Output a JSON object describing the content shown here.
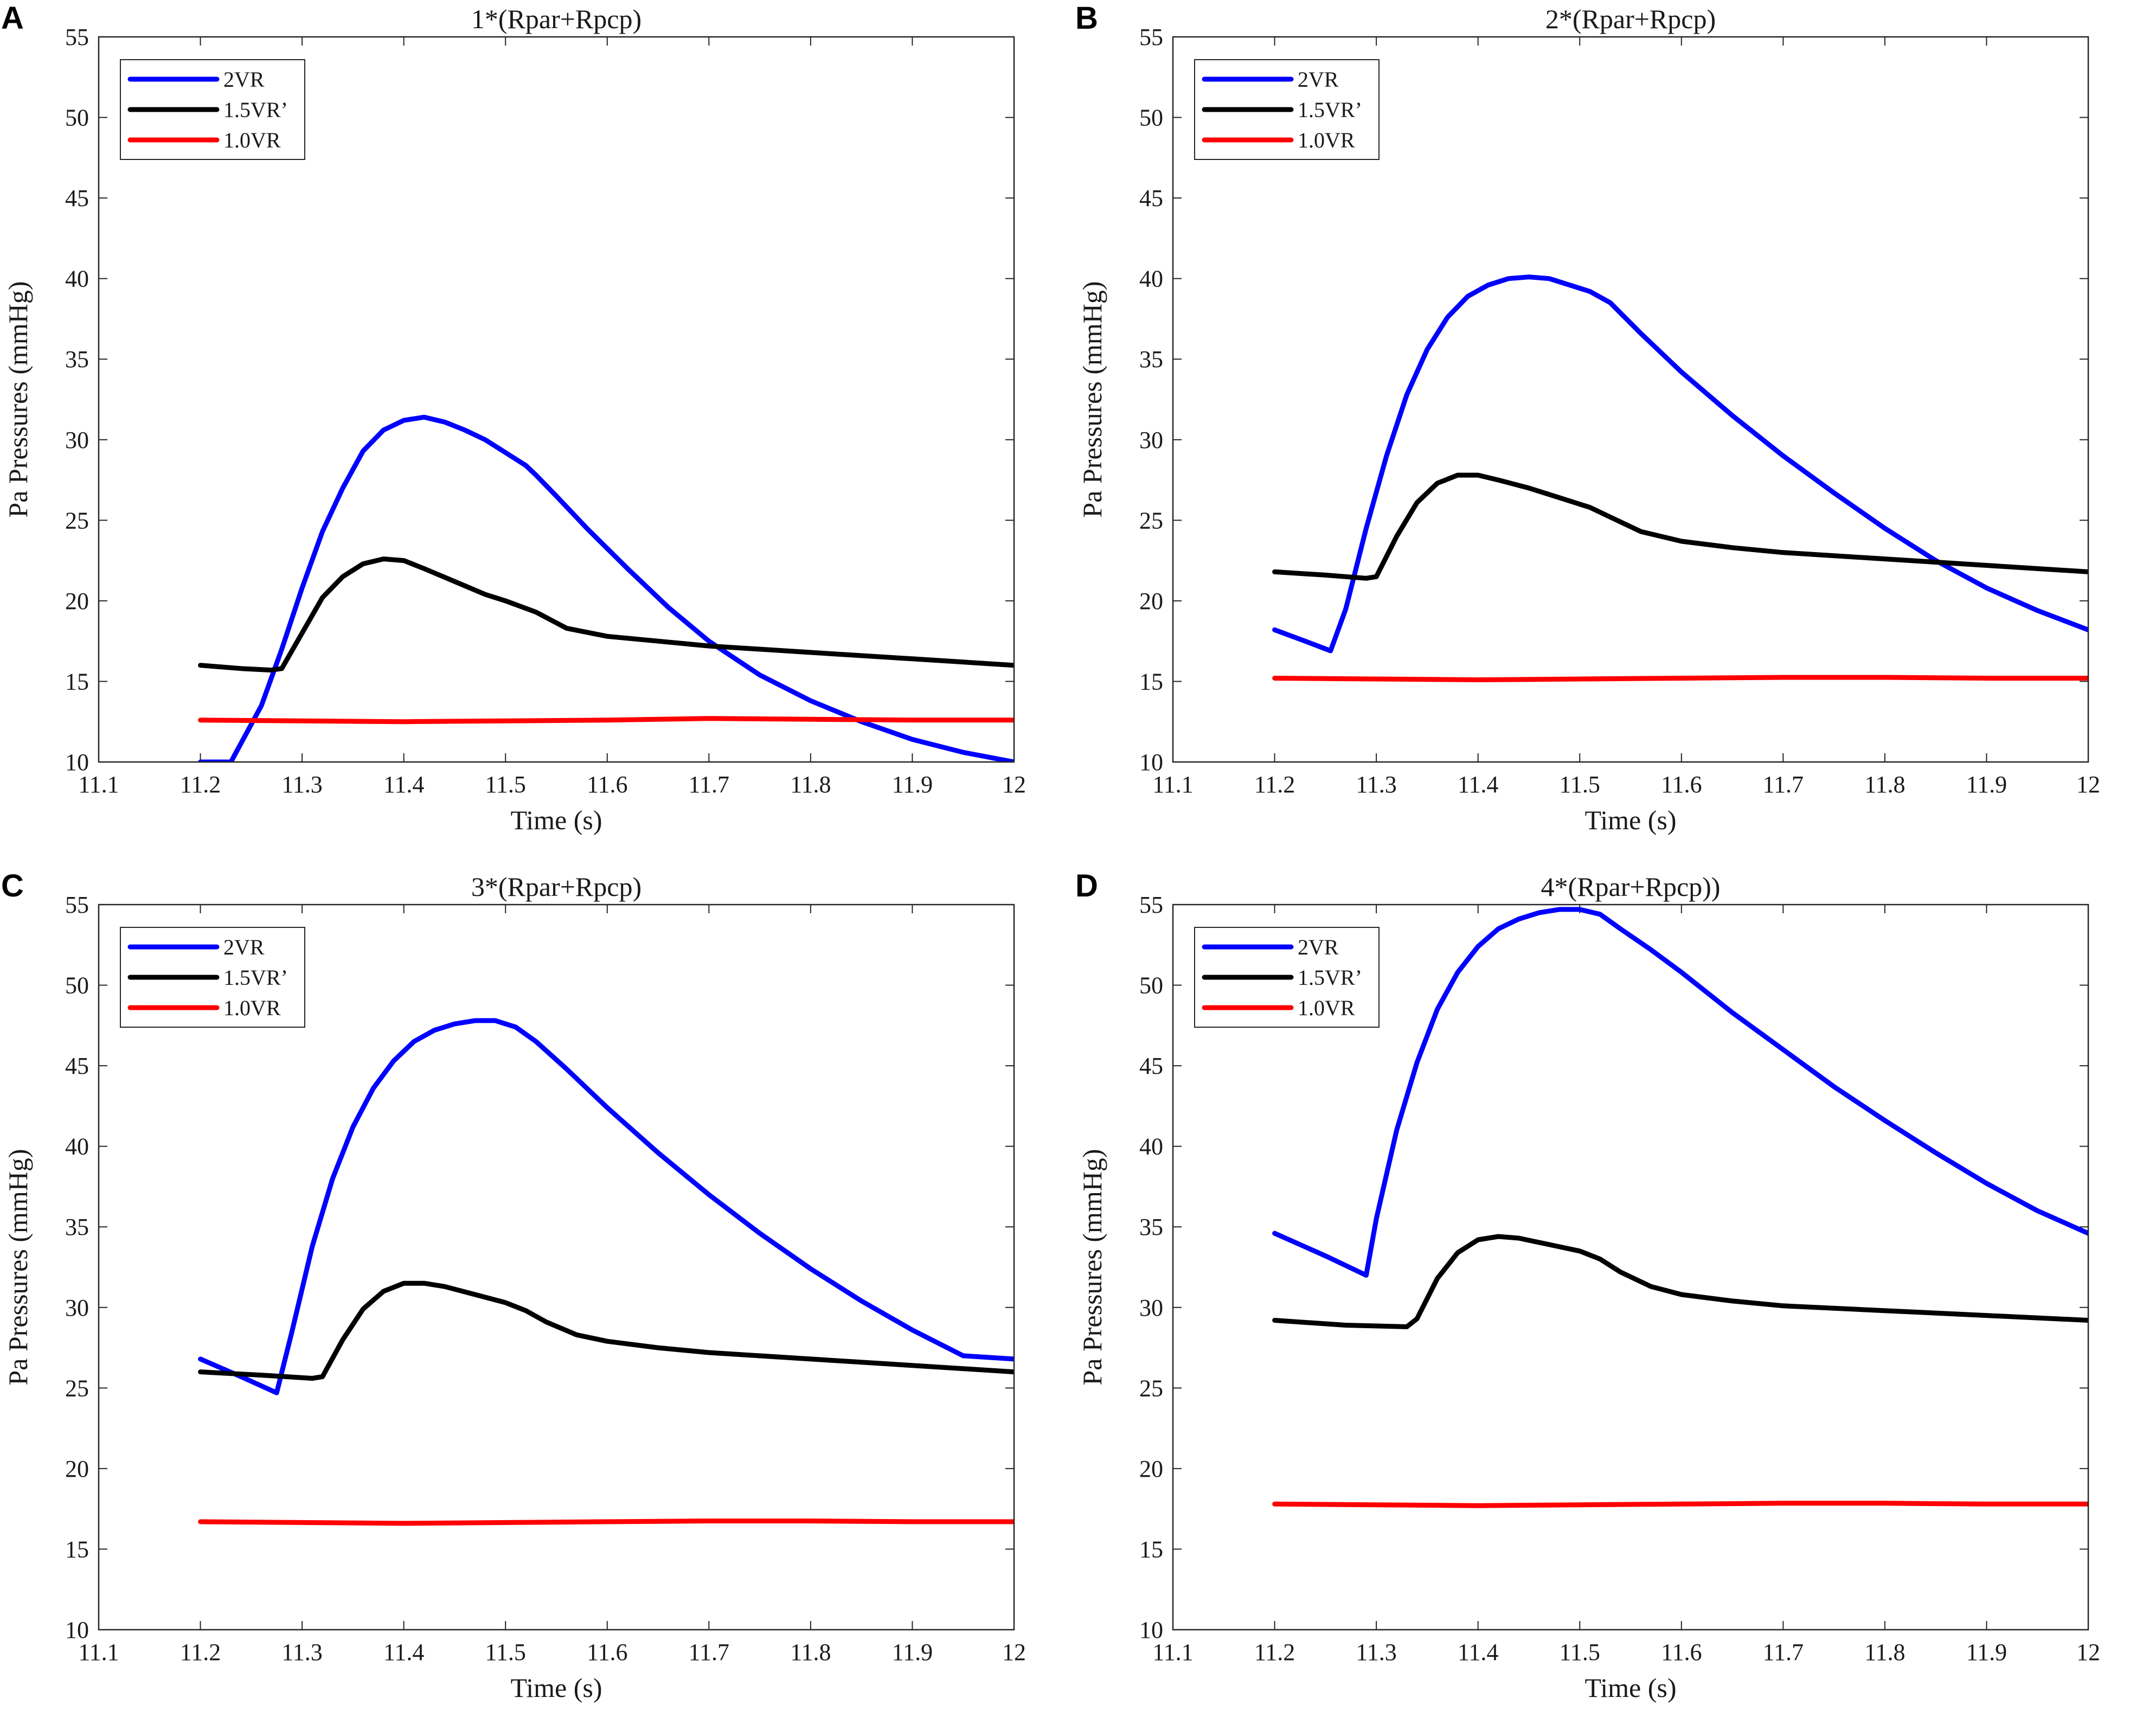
{
  "figure": {
    "panels": [
      "A",
      "B",
      "C",
      "D"
    ]
  },
  "chart_data": [
    {
      "panel_label": "A",
      "type": "line",
      "title": "1*(Rpar+Rpcp)",
      "xlabel": "Time (s)",
      "ylabel": "Pa Pressures (mmHg)",
      "xlim": [
        11.1,
        12
      ],
      "ylim": [
        10,
        55
      ],
      "xticks": [
        "11.1",
        "11.2",
        "11.3",
        "11.4",
        "11.5",
        "11.6",
        "11.7",
        "11.8",
        "11.9",
        "12"
      ],
      "yticks": [
        "10",
        "15",
        "20",
        "25",
        "30",
        "35",
        "40",
        "45",
        "50",
        "55"
      ],
      "legend_position": "top-left",
      "series": [
        {
          "name": "2VR",
          "color": "#0000ff",
          "x": [
            11.2,
            11.23,
            11.26,
            11.28,
            11.3,
            11.32,
            11.34,
            11.36,
            11.38,
            11.4,
            11.42,
            11.44,
            11.46,
            11.48,
            11.5,
            11.52,
            11.53,
            11.55,
            11.58,
            11.62,
            11.66,
            11.7,
            11.75,
            11.8,
            11.85,
            11.9,
            11.95,
            12.0
          ],
          "y": [
            10.0,
            10.0,
            13.5,
            17.0,
            20.8,
            24.3,
            27.0,
            29.3,
            30.6,
            31.2,
            31.4,
            31.1,
            30.6,
            30.0,
            29.2,
            28.4,
            27.8,
            26.5,
            24.5,
            22.0,
            19.6,
            17.5,
            15.4,
            13.8,
            12.5,
            11.4,
            10.6,
            10.0
          ]
        },
        {
          "name": "1.5VR’",
          "color": "#000000",
          "x": [
            11.2,
            11.24,
            11.27,
            11.28,
            11.3,
            11.32,
            11.34,
            11.36,
            11.38,
            11.4,
            11.42,
            11.45,
            11.48,
            11.5,
            11.53,
            11.56,
            11.6,
            11.65,
            11.7,
            11.8,
            11.9,
            12.0
          ],
          "y": [
            16.0,
            15.8,
            15.7,
            15.8,
            18.0,
            20.2,
            21.5,
            22.3,
            22.6,
            22.5,
            22.0,
            21.2,
            20.4,
            20.0,
            19.3,
            18.3,
            17.8,
            17.5,
            17.2,
            16.8,
            16.4,
            16.0
          ]
        },
        {
          "name": "1.0VR",
          "color": "#ff0000",
          "x": [
            11.2,
            11.3,
            11.4,
            11.5,
            11.6,
            11.7,
            11.8,
            11.9,
            12.0
          ],
          "y": [
            12.6,
            12.55,
            12.5,
            12.55,
            12.6,
            12.7,
            12.65,
            12.6,
            12.6
          ]
        }
      ]
    },
    {
      "panel_label": "B",
      "type": "line",
      "title": "2*(Rpar+Rpcp)",
      "xlabel": "Time (s)",
      "ylabel": "Pa Pressures (mmHg)",
      "xlim": [
        11.1,
        12
      ],
      "ylim": [
        10,
        55
      ],
      "xticks": [
        "11.1",
        "11.2",
        "11.3",
        "11.4",
        "11.5",
        "11.6",
        "11.7",
        "11.8",
        "11.9",
        "12"
      ],
      "yticks": [
        "10",
        "15",
        "20",
        "25",
        "30",
        "35",
        "40",
        "45",
        "50",
        "55"
      ],
      "legend_position": "top-left",
      "series": [
        {
          "name": "2VR",
          "color": "#0000ff",
          "x": [
            11.2,
            11.23,
            11.255,
            11.27,
            11.29,
            11.31,
            11.33,
            11.35,
            11.37,
            11.39,
            11.41,
            11.43,
            11.45,
            11.47,
            11.49,
            11.51,
            11.53,
            11.56,
            11.6,
            11.65,
            11.7,
            11.75,
            11.8,
            11.85,
            11.9,
            11.95,
            12.0
          ],
          "y": [
            18.2,
            17.5,
            16.9,
            19.5,
            24.5,
            29.0,
            32.8,
            35.6,
            37.6,
            38.9,
            39.6,
            40.0,
            40.1,
            40.0,
            39.6,
            39.2,
            38.5,
            36.6,
            34.2,
            31.5,
            29.0,
            26.7,
            24.5,
            22.5,
            20.8,
            19.4,
            18.2
          ]
        },
        {
          "name": "1.5VR’",
          "color": "#000000",
          "x": [
            11.2,
            11.25,
            11.29,
            11.3,
            11.32,
            11.34,
            11.36,
            11.38,
            11.4,
            11.42,
            11.45,
            11.48,
            11.51,
            11.53,
            11.56,
            11.6,
            11.65,
            11.7,
            11.8,
            11.9,
            12.0
          ],
          "y": [
            21.8,
            21.6,
            21.4,
            21.5,
            24.0,
            26.1,
            27.3,
            27.8,
            27.8,
            27.5,
            27.0,
            26.4,
            25.8,
            25.2,
            24.3,
            23.7,
            23.3,
            23.0,
            22.6,
            22.2,
            21.8
          ]
        },
        {
          "name": "1.0VR",
          "color": "#ff0000",
          "x": [
            11.2,
            11.3,
            11.4,
            11.5,
            11.6,
            11.7,
            11.8,
            11.9,
            12.0
          ],
          "y": [
            15.2,
            15.15,
            15.1,
            15.15,
            15.2,
            15.25,
            15.25,
            15.2,
            15.2
          ]
        }
      ]
    },
    {
      "panel_label": "C",
      "type": "line",
      "title": "3*(Rpar+Rpcp)",
      "xlabel": "Time (s)",
      "ylabel": "Pa Pressures (mmHg)",
      "xlim": [
        11.1,
        12
      ],
      "ylim": [
        10,
        55
      ],
      "xticks": [
        "11.1",
        "11.2",
        "11.3",
        "11.4",
        "11.5",
        "11.6",
        "11.7",
        "11.8",
        "11.9",
        "12"
      ],
      "yticks": [
        "10",
        "15",
        "20",
        "25",
        "30",
        "35",
        "40",
        "45",
        "50",
        "55"
      ],
      "legend_position": "top-left",
      "series": [
        {
          "name": "2VR",
          "color": "#0000ff",
          "x": [
            11.2,
            11.24,
            11.275,
            11.29,
            11.31,
            11.33,
            11.35,
            11.37,
            11.39,
            11.41,
            11.43,
            11.45,
            11.47,
            11.49,
            11.51,
            11.53,
            11.56,
            11.6,
            11.65,
            11.7,
            11.75,
            11.8,
            11.85,
            11.9,
            11.95,
            12.0
          ],
          "y": [
            26.8,
            25.7,
            24.7,
            28.5,
            33.8,
            38.0,
            41.2,
            43.6,
            45.3,
            46.5,
            47.2,
            47.6,
            47.8,
            47.8,
            47.4,
            46.5,
            44.8,
            42.4,
            39.6,
            37.0,
            34.6,
            32.4,
            30.4,
            28.6,
            27.0,
            26.8
          ]
        },
        {
          "name": "1.5VR’",
          "color": "#000000",
          "x": [
            11.2,
            11.26,
            11.31,
            11.32,
            11.34,
            11.36,
            11.38,
            11.4,
            11.42,
            11.44,
            11.47,
            11.5,
            11.52,
            11.54,
            11.57,
            11.6,
            11.65,
            11.7,
            11.8,
            11.9,
            12.0
          ],
          "y": [
            26.0,
            25.8,
            25.6,
            25.7,
            28.0,
            29.9,
            31.0,
            31.5,
            31.5,
            31.3,
            30.8,
            30.3,
            29.8,
            29.1,
            28.3,
            27.9,
            27.5,
            27.2,
            26.8,
            26.4,
            26.0
          ]
        },
        {
          "name": "1.0VR",
          "color": "#ff0000",
          "x": [
            11.2,
            11.3,
            11.4,
            11.5,
            11.6,
            11.7,
            11.8,
            11.9,
            12.0
          ],
          "y": [
            16.7,
            16.65,
            16.6,
            16.65,
            16.7,
            16.75,
            16.75,
            16.7,
            16.7
          ]
        }
      ]
    },
    {
      "panel_label": "D",
      "type": "line",
      "title": "4*(Rpar+Rpcp))",
      "xlabel": "Time (s)",
      "ylabel": "Pa Pressures (mmHg)",
      "xlim": [
        11.1,
        12
      ],
      "ylim": [
        10,
        55
      ],
      "xticks": [
        "11.1",
        "11.2",
        "11.3",
        "11.4",
        "11.5",
        "11.6",
        "11.7",
        "11.8",
        "11.9",
        "12"
      ],
      "yticks": [
        "10",
        "15",
        "20",
        "25",
        "30",
        "35",
        "40",
        "45",
        "50",
        "55"
      ],
      "legend_position": "top-left",
      "series": [
        {
          "name": "2VR",
          "color": "#0000ff",
          "x": [
            11.2,
            11.25,
            11.29,
            11.3,
            11.32,
            11.34,
            11.36,
            11.38,
            11.4,
            11.42,
            11.44,
            11.46,
            11.48,
            11.5,
            11.52,
            11.54,
            11.57,
            11.6,
            11.65,
            11.7,
            11.75,
            11.8,
            11.85,
            11.9,
            11.95,
            12.0
          ],
          "y": [
            34.6,
            33.2,
            32.0,
            35.5,
            41.0,
            45.2,
            48.5,
            50.8,
            52.4,
            53.5,
            54.1,
            54.5,
            54.7,
            54.7,
            54.4,
            53.5,
            52.2,
            50.8,
            48.3,
            46.0,
            43.7,
            41.6,
            39.6,
            37.7,
            36.0,
            34.6
          ]
        },
        {
          "name": "1.5VR’",
          "color": "#000000",
          "x": [
            11.2,
            11.27,
            11.33,
            11.34,
            11.36,
            11.38,
            11.4,
            11.42,
            11.44,
            11.47,
            11.5,
            11.52,
            11.54,
            11.57,
            11.6,
            11.65,
            11.7,
            11.8,
            11.9,
            12.0
          ],
          "y": [
            29.2,
            28.9,
            28.8,
            29.3,
            31.8,
            33.4,
            34.2,
            34.4,
            34.3,
            33.9,
            33.5,
            33.0,
            32.2,
            31.3,
            30.8,
            30.4,
            30.1,
            29.8,
            29.5,
            29.2
          ]
        },
        {
          "name": "1.0VR",
          "color": "#ff0000",
          "x": [
            11.2,
            11.3,
            11.4,
            11.5,
            11.6,
            11.7,
            11.8,
            11.9,
            12.0
          ],
          "y": [
            17.8,
            17.75,
            17.7,
            17.75,
            17.8,
            17.85,
            17.85,
            17.8,
            17.8
          ]
        }
      ]
    }
  ]
}
